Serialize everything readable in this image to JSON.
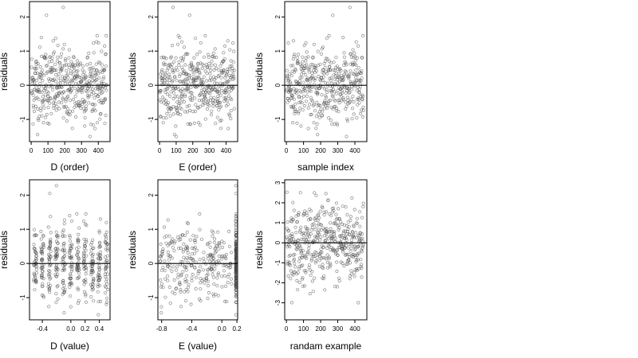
{
  "chart_data": [
    {
      "type": "scatter",
      "xlabel": "D (order)",
      "ylabel": "residuals",
      "xlim": [
        -10,
        470
      ],
      "ylim": [
        -1.65,
        2.45
      ],
      "xticks": [
        0,
        100,
        200,
        300,
        400
      ],
      "yticks": [
        -1,
        0,
        1,
        2
      ],
      "reference_line": 0,
      "points": []
    },
    {
      "type": "scatter",
      "xlabel": "E (order)",
      "ylabel": "residuals",
      "xlim": [
        -10,
        470
      ],
      "ylim": [
        -1.65,
        2.45
      ],
      "xticks": [
        0,
        100,
        200,
        300,
        400
      ],
      "yticks": [
        -1,
        0,
        1,
        2
      ],
      "reference_line": 0,
      "points": []
    },
    {
      "type": "scatter",
      "xlabel": "sample index",
      "ylabel": "residuals",
      "xlim": [
        -10,
        470
      ],
      "ylim": [
        -1.65,
        2.45
      ],
      "xticks": [
        0,
        100,
        200,
        300,
        400
      ],
      "yticks": [
        -1,
        0,
        1,
        2
      ],
      "reference_line": 0,
      "points": []
    },
    {
      "type": "scatter",
      "xlabel": "D (value)",
      "ylabel": "residuals",
      "xlim": [
        -0.58,
        0.55
      ],
      "ylim": [
        -1.65,
        2.45
      ],
      "xticks": [
        -0.4,
        0.0,
        0.2,
        0.4
      ],
      "xtick_labels": [
        "-0.4",
        "0.0",
        "0.2",
        "0.4"
      ],
      "yticks": [
        -1,
        0,
        1,
        2
      ],
      "reference_line": 0,
      "points": []
    },
    {
      "type": "scatter",
      "xlabel": "E (value)",
      "ylabel": "residuals",
      "xlim": [
        -0.85,
        0.21
      ],
      "ylim": [
        -1.65,
        2.45
      ],
      "xticks": [
        -0.8,
        -0.4,
        0.0,
        0.2
      ],
      "xtick_labels": [
        "-0.8",
        "-0.4",
        "0.0",
        "0.2"
      ],
      "yticks": [
        -1,
        0,
        1,
        2
      ],
      "reference_line": 0,
      "points": []
    },
    {
      "type": "scatter",
      "xlabel": "randam example",
      "ylabel": "residuals",
      "xlim": [
        -10,
        470
      ],
      "ylim": [
        -3.85,
        3.15
      ],
      "xticks": [
        0,
        100,
        200,
        300,
        400
      ],
      "yticks": [
        -3,
        -2,
        -1,
        0,
        1,
        2,
        3
      ],
      "reference_line": 0,
      "points": []
    }
  ]
}
